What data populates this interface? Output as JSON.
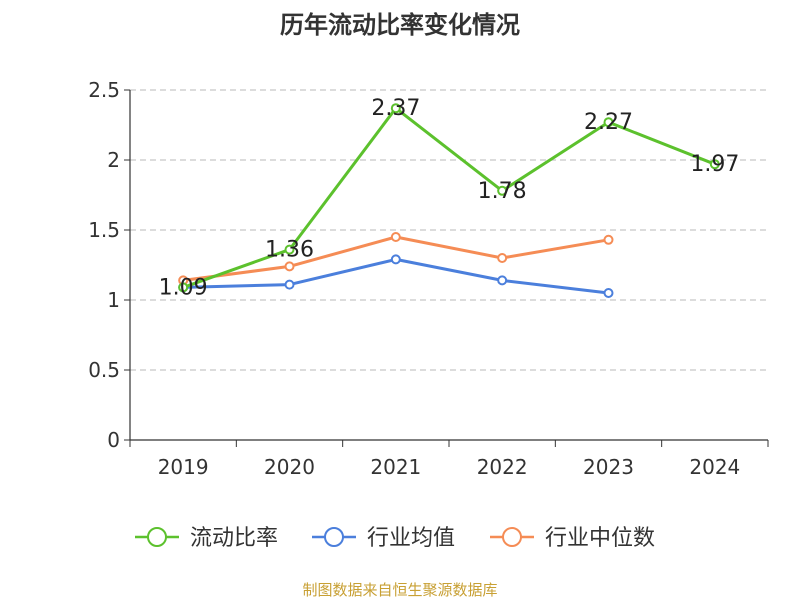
{
  "chart_data": {
    "type": "line",
    "title": "历年流动比率变化情况",
    "categories": [
      "2019",
      "2020",
      "2021",
      "2022",
      "2023",
      "2024"
    ],
    "ylim": [
      0,
      2.5
    ],
    "y_ticks": [
      "0",
      "0.5",
      "1",
      "1.5",
      "2",
      "2.5"
    ],
    "grid": true,
    "legend_position": "bottom",
    "series": [
      {
        "name": "流动比率",
        "color": "#5cc12d",
        "values": [
          1.09,
          1.36,
          2.37,
          1.78,
          2.27,
          1.97
        ],
        "labels": [
          "1.09",
          "1.36",
          "2.37",
          "1.78",
          "2.27",
          "1.97"
        ]
      },
      {
        "name": "行业均值",
        "color": "#4b7fdc",
        "values": [
          1.09,
          1.11,
          1.29,
          1.14,
          1.05,
          null
        ]
      },
      {
        "name": "行业中位数",
        "color": "#f58c55",
        "values": [
          1.14,
          1.24,
          1.45,
          1.3,
          1.43,
          null
        ]
      }
    ],
    "source": "制图数据来自恒生聚源数据库"
  }
}
